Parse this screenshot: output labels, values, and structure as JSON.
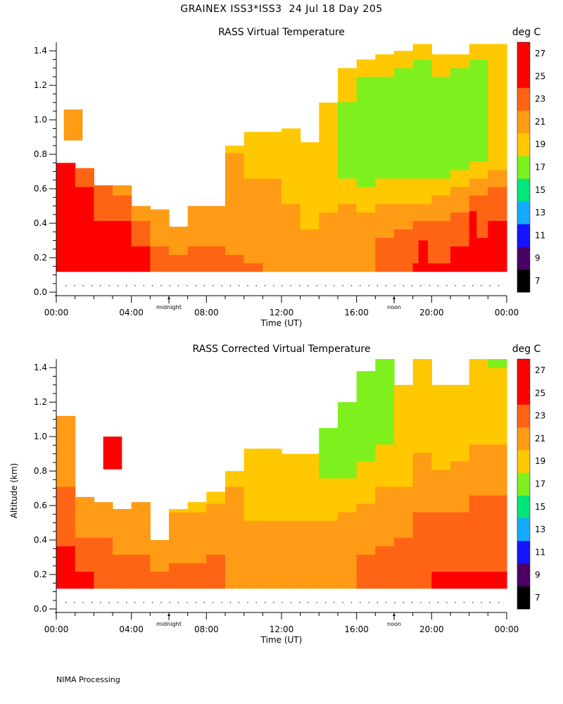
{
  "main_title": "GRAINEX ISS3*ISS3  24 Jul 18 Day 205",
  "footer": "NIMA Processing",
  "colors": {
    "scale": [
      "#000000",
      "#4b0064",
      "#1414ff",
      "#14aaff",
      "#00e67a",
      "#7ef01e",
      "#ffc800",
      "#ff9b14",
      "#ff6414",
      "#ff0000"
    ],
    "background": "#ffffff"
  },
  "chart_data": [
    {
      "type": "heatmap",
      "title": "RASS Virtual Temperature",
      "units": "deg C",
      "xlabel": "Time (UT)",
      "ylabel": "",
      "xlim": [
        0,
        24
      ],
      "ylim": [
        0,
        1.45
      ],
      "xticks": [
        "00:00",
        "04:00",
        "08:00",
        "12:00",
        "16:00",
        "20:00",
        "00:00"
      ],
      "yticks": [
        "0.0",
        "0.2",
        "0.4",
        "0.6",
        "0.8",
        "1.0",
        "1.2",
        "1.4"
      ],
      "markers": [
        {
          "x": 6,
          "label": "midnight"
        },
        {
          "x": 18,
          "label": "noon"
        }
      ],
      "colorbar": {
        "levels": [
          7,
          9,
          11,
          13,
          15,
          17,
          19,
          21,
          23,
          25,
          27,
          29
        ],
        "labels": [
          "7",
          "9",
          "11",
          "13",
          "15",
          "17",
          "19",
          "21",
          "23",
          "25",
          "27"
        ]
      },
      "altitudes": [
        0.12,
        0.2,
        0.3,
        0.4,
        0.5,
        0.6,
        0.7,
        0.8,
        0.9,
        1.0,
        1.1,
        1.2,
        1.3,
        1.4
      ],
      "times": [
        0.5,
        1.5,
        2.5,
        3.5,
        4.5,
        5.5,
        6.5,
        7.5,
        8.5,
        9.5,
        10.5,
        11.5,
        12.5,
        13.5,
        14.5,
        15.5,
        16.5,
        17.5,
        18.5,
        19.5,
        20.5,
        21.5,
        22.5,
        23.5
      ],
      "top_km": [
        0.75,
        0.72,
        0.62,
        0.62,
        0.5,
        0.48,
        0.38,
        0.5,
        0.5,
        0.85,
        0.93,
        0.93,
        0.95,
        0.87,
        1.1,
        1.3,
        1.35,
        1.38,
        1.4,
        1.44,
        1.38,
        1.38,
        1.44,
        1.44
      ],
      "bands": [
        [
          25.5,
          24.5,
          23,
          22,
          21.5,
          21.5,
          21,
          21,
          21,
          20.5,
          20,
          19.5,
          19.5,
          19.5,
          19.5,
          19.5,
          19.5,
          19.5,
          19.5,
          19.5,
          19.5,
          19.5,
          19.5,
          19.5
        ],
        [
          25.5,
          25,
          25,
          24.5,
          23,
          22.5,
          22.5,
          22.5,
          22.5,
          21.5,
          20.5,
          20.5,
          20.5,
          20,
          19.5,
          19,
          18.5,
          18.5,
          18.5,
          18.5,
          18.5,
          18,
          18.5,
          19
        ],
        [
          25,
          25,
          24.5,
          24.5,
          23,
          22.5,
          22.5,
          22.5,
          22,
          21.5,
          21,
          21,
          20.5,
          20.5,
          19.5,
          18,
          17.5,
          17.5,
          17.8,
          17,
          17,
          17.5,
          18.5,
          19
        ],
        [
          25.5,
          25.5,
          25.5,
          25.5,
          23,
          22.5,
          22.5,
          22.5,
          22.5,
          21.5,
          21,
          21,
          21,
          20.5,
          20,
          18,
          17.5,
          17.5,
          18,
          17,
          17,
          18,
          19,
          20
        ],
        [
          26.5,
          26,
          25.5,
          25.5,
          25,
          24,
          24.5,
          24,
          23,
          22,
          21.5,
          21.5,
          21.5,
          21,
          21,
          21,
          20.5,
          20.5,
          20.5,
          20.5,
          21.5,
          22.5,
          23.5,
          23.5
        ],
        [
          27.5,
          27.5,
          27,
          27,
          25,
          24.5,
          24.5,
          24,
          23.5,
          23,
          22.5,
          22,
          22,
          22,
          22,
          22,
          22.5,
          23,
          23.5,
          24,
          24,
          24.5,
          25,
          25.5
        ],
        [
          27.5,
          27.5,
          27.5,
          26.5,
          25,
          25,
          25,
          25,
          25,
          24,
          23.5,
          23,
          23,
          23,
          23,
          23,
          23,
          23.5,
          25,
          25.5,
          25.5,
          26,
          26.5,
          26.5
        ]
      ],
      "islands": [
        {
          "t0": 0.4,
          "t1": 1.4,
          "z0": 0.88,
          "z1": 1.06,
          "value": 21
        },
        {
          "t0": 22,
          "t1": 22.4,
          "z0": 0.15,
          "z1": 0.47,
          "value": 27.5
        },
        {
          "t0": 19.3,
          "t1": 19.8,
          "z0": 0.15,
          "z1": 0.3,
          "value": 27.5
        }
      ]
    },
    {
      "type": "heatmap",
      "title": "RASS Corrected Virtual Temperature",
      "units": "deg C",
      "xlabel": "Time (UT)",
      "ylabel": "Altitude (km)",
      "xlim": [
        0,
        24
      ],
      "ylim": [
        0,
        1.45
      ],
      "xticks": [
        "00:00",
        "04:00",
        "08:00",
        "12:00",
        "16:00",
        "20:00",
        "00:00"
      ],
      "yticks": [
        "0.0",
        "0.2",
        "0.4",
        "0.6",
        "0.8",
        "1.0",
        "1.2",
        "1.4"
      ],
      "markers": [
        {
          "x": 6,
          "label": "midnight"
        },
        {
          "x": 18,
          "label": "noon"
        }
      ],
      "colorbar": {
        "levels": [
          7,
          9,
          11,
          13,
          15,
          17,
          19,
          21,
          23,
          25,
          27,
          29
        ],
        "labels": [
          "7",
          "9",
          "11",
          "13",
          "15",
          "17",
          "19",
          "21",
          "23",
          "25",
          "27"
        ]
      },
      "altitudes": [
        0.12,
        0.2,
        0.3,
        0.4,
        0.5,
        0.6,
        0.7,
        0.8,
        0.9,
        1.0,
        1.1,
        1.2,
        1.3,
        1.4
      ],
      "times": [
        0.5,
        1.5,
        2.5,
        3.5,
        4.5,
        5.5,
        6.5,
        7.5,
        8.5,
        9.5,
        10.5,
        11.5,
        12.5,
        13.5,
        14.5,
        15.5,
        16.5,
        17.5,
        18.5,
        19.5,
        20.5,
        21.5,
        22.5,
        23.5
      ],
      "top_km": [
        1.12,
        0.65,
        0.62,
        0.58,
        0.62,
        0.4,
        0.58,
        0.62,
        0.68,
        0.8,
        0.93,
        0.93,
        0.9,
        0.9,
        1.05,
        1.2,
        1.38,
        1.45,
        1.3,
        1.45,
        1.3,
        1.3,
        1.45,
        1.45
      ],
      "bands": [
        [
          21.5,
          21,
          21,
          21,
          21,
          21,
          20.5,
          20.5,
          20.5,
          19.5,
          19.5,
          19.5,
          19.5,
          19,
          18.5,
          18,
          18,
          18.5,
          19.5,
          20,
          20,
          20,
          19,
          18.5
        ],
        [
          22,
          22,
          22,
          22,
          22,
          21.5,
          21.5,
          21.5,
          21.5,
          21,
          20.5,
          19.5,
          19.5,
          19,
          18.5,
          18,
          17.5,
          18.5,
          19.5,
          20.5,
          20.5,
          20.5,
          20.5,
          20.5
        ],
        [
          22.5,
          22.5,
          22.5,
          22,
          22,
          22,
          22,
          21.5,
          21.5,
          21.5,
          20.5,
          20,
          20,
          19.5,
          19,
          18.5,
          17.5,
          18.5,
          19.5,
          20.5,
          20.5,
          20.5,
          20.5,
          20.5
        ],
        [
          23.5,
          23.5,
          23.5,
          22,
          21.5,
          22,
          22,
          22,
          22,
          21.5,
          21,
          21,
          21,
          21,
          20.5,
          20,
          20,
          20.5,
          21,
          21.5,
          21.5,
          22,
          22.5,
          22.5
        ],
        [
          24.5,
          24.5,
          24,
          23.5,
          23.5,
          23,
          23,
          23,
          23,
          22,
          21.5,
          21.5,
          21.5,
          21.5,
          21.5,
          21.5,
          21.5,
          22,
          22.5,
          23,
          23.5,
          23.5,
          23.5,
          23.5
        ],
        [
          25.5,
          25,
          24,
          24,
          24,
          23.5,
          23,
          23,
          23,
          23,
          22.5,
          22.5,
          22.5,
          22.5,
          22.5,
          22.5,
          23,
          23,
          23.5,
          24,
          24.5,
          24.5,
          24.5,
          24.5
        ],
        [
          25.5,
          25.5,
          25,
          24.5,
          23.5,
          23.5,
          23.5,
          23,
          23,
          22.5,
          22.5,
          23,
          23,
          23,
          23,
          23,
          23.5,
          24,
          24.5,
          25,
          25.5,
          25.5,
          25.5,
          25.5
        ]
      ],
      "islands": [
        {
          "t0": 2.5,
          "t1": 3.5,
          "z0": 0.81,
          "z1": 1.0,
          "value": 27.5
        }
      ]
    }
  ]
}
